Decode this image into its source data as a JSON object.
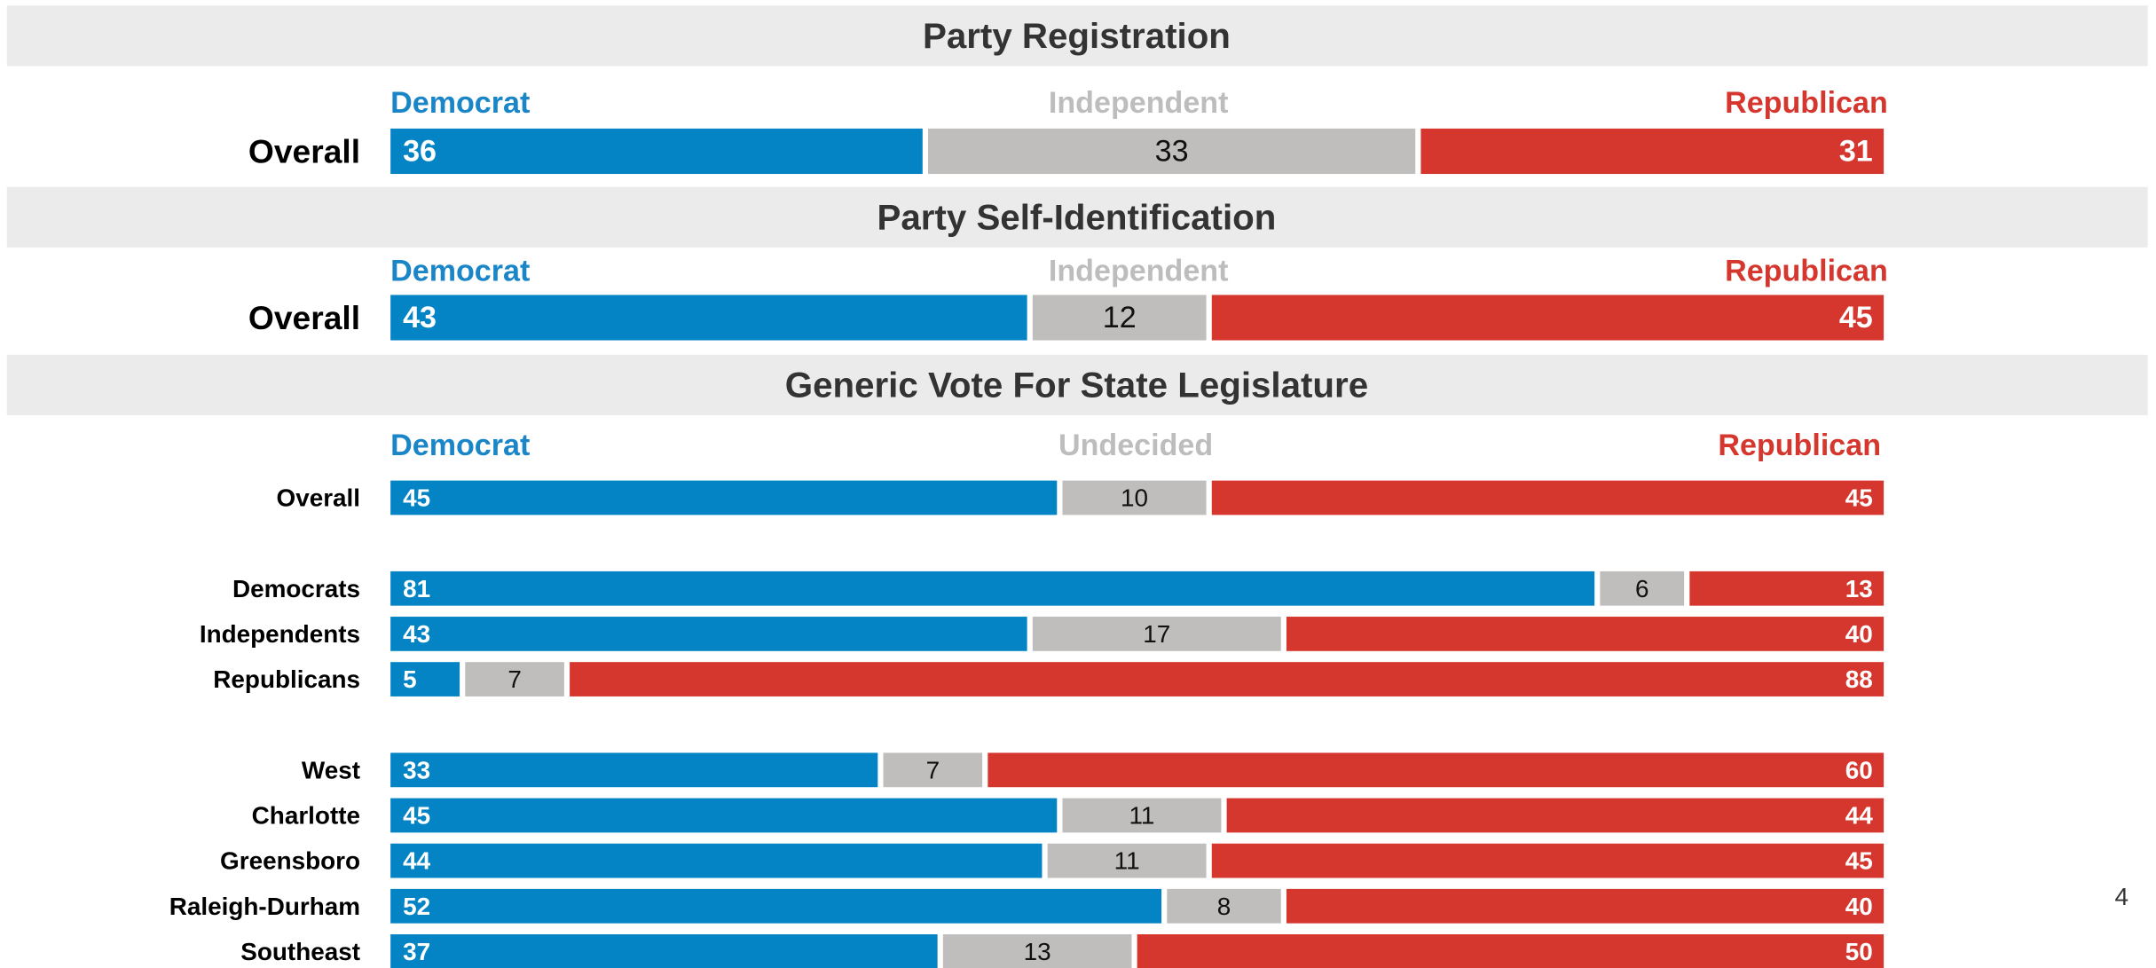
{
  "chart_data": [
    {
      "type": "stacked_bar",
      "title": "Party Registration",
      "orientation": "horizontal",
      "categories": [
        "Overall"
      ],
      "series": [
        {
          "name": "Democrat",
          "color": "#0484c4",
          "values": [
            36
          ]
        },
        {
          "name": "Independent",
          "color": "#bfbebc",
          "values": [
            33
          ]
        },
        {
          "name": "Republican",
          "color": "#d5372e",
          "values": [
            31
          ]
        }
      ]
    },
    {
      "type": "stacked_bar",
      "title": "Party Self-Identification",
      "orientation": "horizontal",
      "categories": [
        "Overall"
      ],
      "series": [
        {
          "name": "Democrat",
          "color": "#0484c4",
          "values": [
            43
          ]
        },
        {
          "name": "Independent",
          "color": "#bfbebc",
          "values": [
            12
          ]
        },
        {
          "name": "Republican",
          "color": "#d5372e",
          "values": [
            45
          ]
        }
      ]
    },
    {
      "type": "stacked_bar",
      "title": "Generic Vote For State Legislature",
      "orientation": "horizontal",
      "categories": [
        "Overall",
        "Democrats",
        "Independents",
        "Republicans",
        "West",
        "Charlotte",
        "Greensboro",
        "Raleigh-Durham",
        "Southeast"
      ],
      "series": [
        {
          "name": "Democrat",
          "color": "#0484c4",
          "values": [
            45,
            81,
            43,
            5,
            33,
            45,
            44,
            52,
            37
          ]
        },
        {
          "name": "Undecided",
          "color": "#bfbebc",
          "values": [
            10,
            6,
            17,
            7,
            7,
            11,
            11,
            8,
            13
          ]
        },
        {
          "name": "Republican",
          "color": "#d5372e",
          "values": [
            45,
            13,
            40,
            88,
            60,
            44,
            45,
            40,
            50
          ]
        }
      ]
    }
  ],
  "page_number": "4"
}
